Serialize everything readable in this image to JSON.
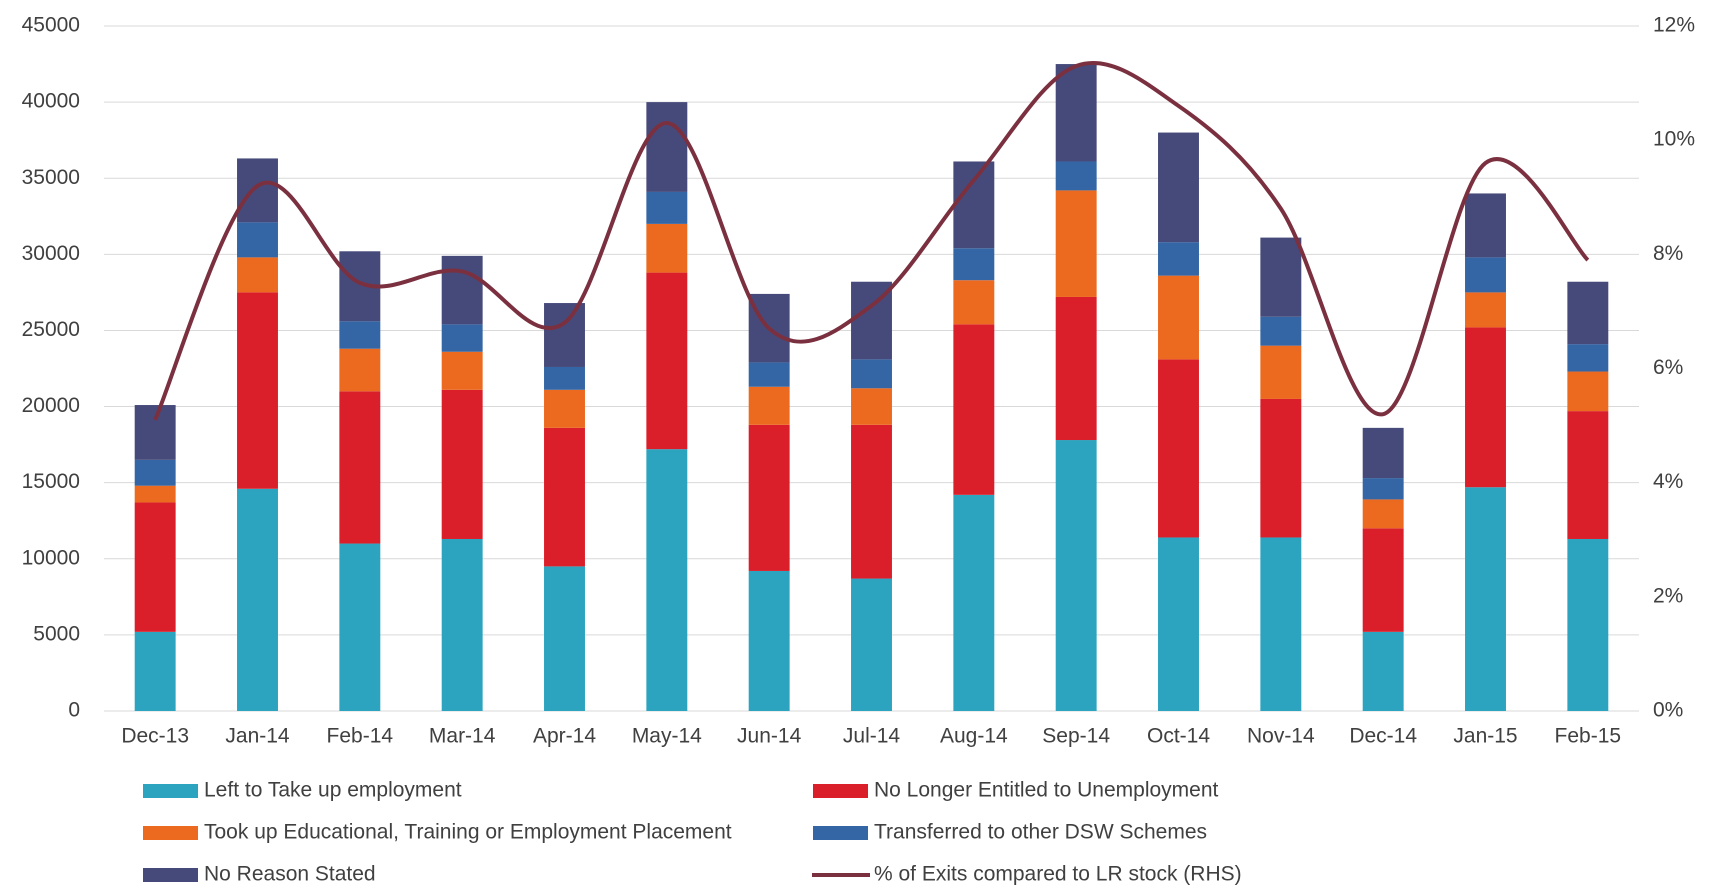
{
  "chart_data": {
    "type": "bar",
    "categories": [
      "Dec-13",
      "Jan-14",
      "Feb-14",
      "Mar-14",
      "Apr-14",
      "May-14",
      "Jun-14",
      "Jul-14",
      "Aug-14",
      "Sep-14",
      "Oct-14",
      "Nov-14",
      "Dec-14",
      "Jan-15",
      "Feb-15"
    ],
    "stacked": true,
    "series": [
      {
        "name": "Left to Take up employment",
        "color": "#2ca4bf",
        "values": [
          5200,
          14600,
          11000,
          11300,
          9500,
          17200,
          9200,
          8700,
          14200,
          17800,
          11400,
          11400,
          5200,
          14700,
          11300
        ]
      },
      {
        "name": "No Longer Entitled to Unemployment",
        "color": "#db1f2a",
        "values": [
          8500,
          12900,
          10000,
          9800,
          9100,
          11600,
          9600,
          10100,
          11200,
          9400,
          11700,
          9100,
          6800,
          10500,
          8400
        ]
      },
      {
        "name": "Took up Educational, Training or Employment Placement",
        "color": "#ec6a1f",
        "values": [
          1100,
          2300,
          2800,
          2500,
          2500,
          3200,
          2500,
          2400,
          2900,
          7000,
          5500,
          3500,
          1900,
          2300,
          2600
        ]
      },
      {
        "name": "Transferred to other DSW Schemes",
        "color": "#3465a4",
        "values": [
          1700,
          2300,
          1800,
          1800,
          1500,
          2100,
          1600,
          1900,
          2100,
          1900,
          2200,
          1900,
          1400,
          2300,
          1800
        ]
      },
      {
        "name": "No Reason Stated",
        "color": "#464a7a",
        "values": [
          3600,
          4200,
          4600,
          4500,
          4200,
          5900,
          4500,
          5100,
          5700,
          6400,
          7200,
          5200,
          3300,
          4200,
          4100
        ]
      },
      {
        "name": "% of Exits compared to LR stock (RHS)",
        "color": "#7b3040",
        "type": "line",
        "axis": "y2",
        "values": [
          5.1,
          9.2,
          7.5,
          7.7,
          6.8,
          10.3,
          6.7,
          7.1,
          9.3,
          11.3,
          10.6,
          8.8,
          5.2,
          9.6,
          7.9
        ]
      }
    ],
    "ylim": [
      0,
      45000
    ],
    "yticks": [
      0,
      5000,
      10000,
      15000,
      20000,
      25000,
      30000,
      35000,
      40000,
      45000
    ],
    "y2lim": [
      0,
      12
    ],
    "y2ticks": [
      {
        "value": 0,
        "label": "0%"
      },
      {
        "value": 2,
        "label": "2%"
      },
      {
        "value": 4,
        "label": "4%"
      },
      {
        "value": 6,
        "label": "6%"
      },
      {
        "value": 8,
        "label": "8%"
      },
      {
        "value": 10,
        "label": "10%"
      },
      {
        "value": 12,
        "label": "12%"
      }
    ],
    "grid": true,
    "legend": "bottom"
  }
}
